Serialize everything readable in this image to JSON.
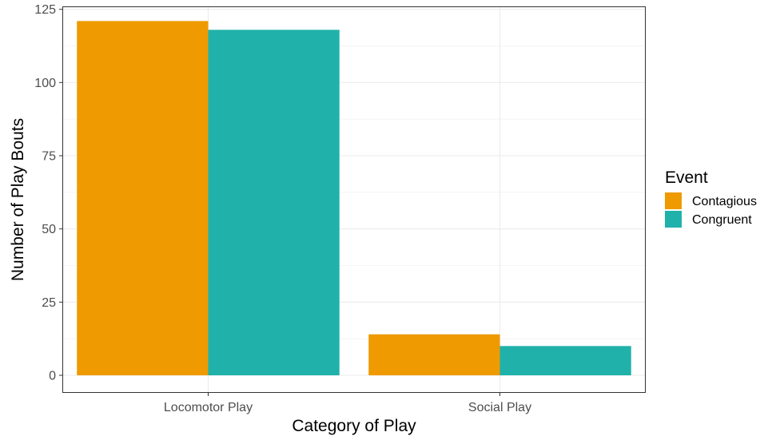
{
  "chart_data": {
    "type": "bar",
    "categories": [
      "Locomotor Play",
      "Social Play"
    ],
    "series": [
      {
        "name": "Contagious",
        "values": [
          121,
          14
        ],
        "color": "#EE9A00"
      },
      {
        "name": "Congruent",
        "values": [
          118,
          10
        ],
        "color": "#20B2AA"
      }
    ],
    "xlabel": "Category of Play",
    "ylabel": "Number of Play Bouts",
    "ylim": [
      -6,
      126
    ],
    "yticks": [
      0,
      25,
      50,
      75,
      100,
      125
    ],
    "ytick_labels": [
      "0",
      "25",
      "50",
      "75",
      "100",
      "125"
    ],
    "legend": {
      "title": "Event",
      "position": "right"
    },
    "grid": true
  }
}
